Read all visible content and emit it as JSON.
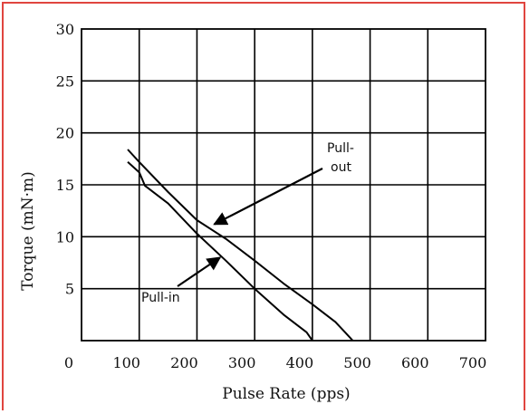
{
  "chart_data": {
    "type": "line",
    "title": "",
    "xlabel": "Pulse Rate (pps)",
    "ylabel": "Torque (mN·m)",
    "xlim": [
      0,
      700
    ],
    "ylim": [
      0,
      30
    ],
    "xticks": [
      0,
      100,
      200,
      300,
      400,
      500,
      600,
      700
    ],
    "yticks": [
      5,
      10,
      15,
      20,
      25,
      30
    ],
    "grid": true,
    "series": [
      {
        "name": "Pull-out",
        "color": "#000000",
        "points": [
          [
            80,
            18.4
          ],
          [
            100,
            17.2
          ],
          [
            150,
            14.3
          ],
          [
            200,
            11.6
          ],
          [
            250,
            9.8
          ],
          [
            300,
            7.7
          ],
          [
            350,
            5.5
          ],
          [
            400,
            3.5
          ],
          [
            440,
            1.8
          ],
          [
            470,
            0
          ]
        ]
      },
      {
        "name": "Pull-in",
        "color": "#000000",
        "points": [
          [
            80,
            17.2
          ],
          [
            100,
            16.2
          ],
          [
            110,
            14.9
          ],
          [
            150,
            13.2
          ],
          [
            200,
            10.3
          ],
          [
            250,
            7.7
          ],
          [
            300,
            5.0
          ],
          [
            350,
            2.5
          ],
          [
            390,
            0.8
          ],
          [
            400,
            0
          ]
        ]
      }
    ],
    "annotations": [
      {
        "label_lines": [
          "Pull-",
          "out"
        ],
        "target": [
          230,
          11.2
        ]
      },
      {
        "label_lines": [
          "Pull-in"
        ],
        "target": [
          240,
          8.0
        ]
      }
    ]
  }
}
